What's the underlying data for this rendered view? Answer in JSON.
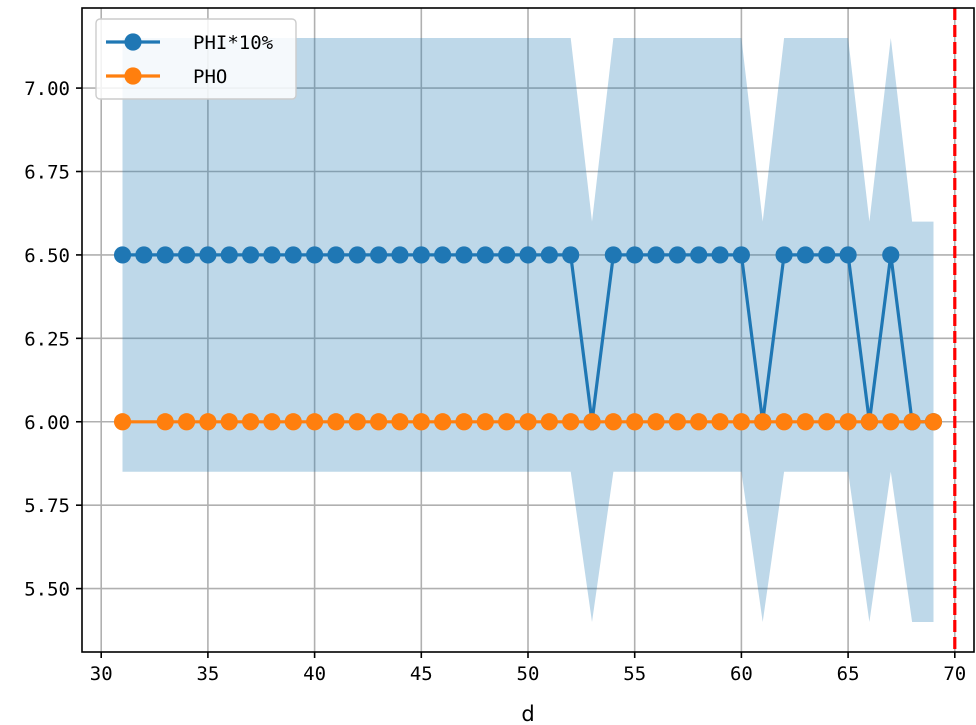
{
  "chart_data": {
    "type": "line",
    "title": "",
    "xlabel": "d",
    "ylabel": "",
    "xlim": [
      29.1,
      70.9
    ],
    "ylim": [
      5.31,
      7.24
    ],
    "xticks": [
      30,
      35,
      40,
      45,
      50,
      55,
      60,
      65,
      70
    ],
    "xtick_labels": [
      "30",
      "35",
      "40",
      "45",
      "50",
      "55",
      "60",
      "65",
      "70"
    ],
    "yticks": [
      5.5,
      5.75,
      6.0,
      6.25,
      6.5,
      6.75,
      7.0
    ],
    "ytick_labels": [
      "5.50",
      "5.75",
      "6.00",
      "6.25",
      "6.50",
      "6.75",
      "7.00"
    ],
    "grid": true,
    "legend_position": "top-left",
    "series": [
      {
        "name": "PHI*10%",
        "color": "#1f77b4",
        "marker": "circle",
        "x": [
          31,
          32,
          33,
          34,
          35,
          36,
          37,
          38,
          39,
          40,
          41,
          42,
          43,
          44,
          45,
          46,
          47,
          48,
          49,
          50,
          51,
          52,
          53,
          54,
          55,
          56,
          57,
          58,
          59,
          60,
          61,
          62,
          63,
          64,
          65,
          66,
          67,
          68,
          69
        ],
        "y": [
          6.5,
          6.5,
          6.5,
          6.5,
          6.5,
          6.5,
          6.5,
          6.5,
          6.5,
          6.5,
          6.5,
          6.5,
          6.5,
          6.5,
          6.5,
          6.5,
          6.5,
          6.5,
          6.5,
          6.5,
          6.5,
          6.5,
          6.0,
          6.5,
          6.5,
          6.5,
          6.5,
          6.5,
          6.5,
          6.5,
          6.0,
          6.5,
          6.5,
          6.5,
          6.5,
          6.0,
          6.5,
          6.0,
          6.0
        ]
      },
      {
        "name": "PHO",
        "color": "#ff7f0e",
        "marker": "circle",
        "x": [
          31,
          33,
          34,
          35,
          36,
          37,
          38,
          39,
          40,
          41,
          42,
          43,
          44,
          45,
          46,
          47,
          48,
          49,
          50,
          51,
          52,
          53,
          54,
          55,
          56,
          57,
          58,
          59,
          60,
          61,
          62,
          63,
          64,
          65,
          66,
          67,
          68,
          69
        ],
        "y": [
          6.0,
          6.0,
          6.0,
          6.0,
          6.0,
          6.0,
          6.0,
          6.0,
          6.0,
          6.0,
          6.0,
          6.0,
          6.0,
          6.0,
          6.0,
          6.0,
          6.0,
          6.0,
          6.0,
          6.0,
          6.0,
          6.0,
          6.0,
          6.0,
          6.0,
          6.0,
          6.0,
          6.0,
          6.0,
          6.0,
          6.0,
          6.0,
          6.0,
          6.0,
          6.0,
          6.0,
          6.0,
          6.0
        ]
      }
    ],
    "band": {
      "color": "#1f77b4",
      "opacity": 0.29,
      "x": [
        31,
        32,
        33,
        34,
        35,
        36,
        37,
        38,
        39,
        40,
        41,
        42,
        43,
        44,
        45,
        46,
        47,
        48,
        49,
        50,
        51,
        52,
        53,
        54,
        55,
        56,
        57,
        58,
        59,
        60,
        61,
        62,
        63,
        64,
        65,
        66,
        67,
        68,
        69
      ],
      "upper": [
        7.15,
        7.15,
        7.15,
        7.15,
        7.15,
        7.15,
        7.15,
        7.15,
        7.15,
        7.15,
        7.15,
        7.15,
        7.15,
        7.15,
        7.15,
        7.15,
        7.15,
        7.15,
        7.15,
        7.15,
        7.15,
        7.15,
        6.6,
        7.15,
        7.15,
        7.15,
        7.15,
        7.15,
        7.15,
        7.15,
        6.6,
        7.15,
        7.15,
        7.15,
        7.15,
        6.6,
        7.15,
        6.6,
        6.6
      ],
      "lower": [
        5.85,
        5.85,
        5.85,
        5.85,
        5.85,
        5.85,
        5.85,
        5.85,
        5.85,
        5.85,
        5.85,
        5.85,
        5.85,
        5.85,
        5.85,
        5.85,
        5.85,
        5.85,
        5.85,
        5.85,
        5.85,
        5.85,
        5.4,
        5.85,
        5.85,
        5.85,
        5.85,
        5.85,
        5.85,
        5.85,
        5.4,
        5.85,
        5.85,
        5.85,
        5.85,
        5.4,
        5.85,
        5.4,
        5.4
      ]
    },
    "vline": {
      "x": 70,
      "color": "#ff0000",
      "style": "dashed"
    }
  }
}
